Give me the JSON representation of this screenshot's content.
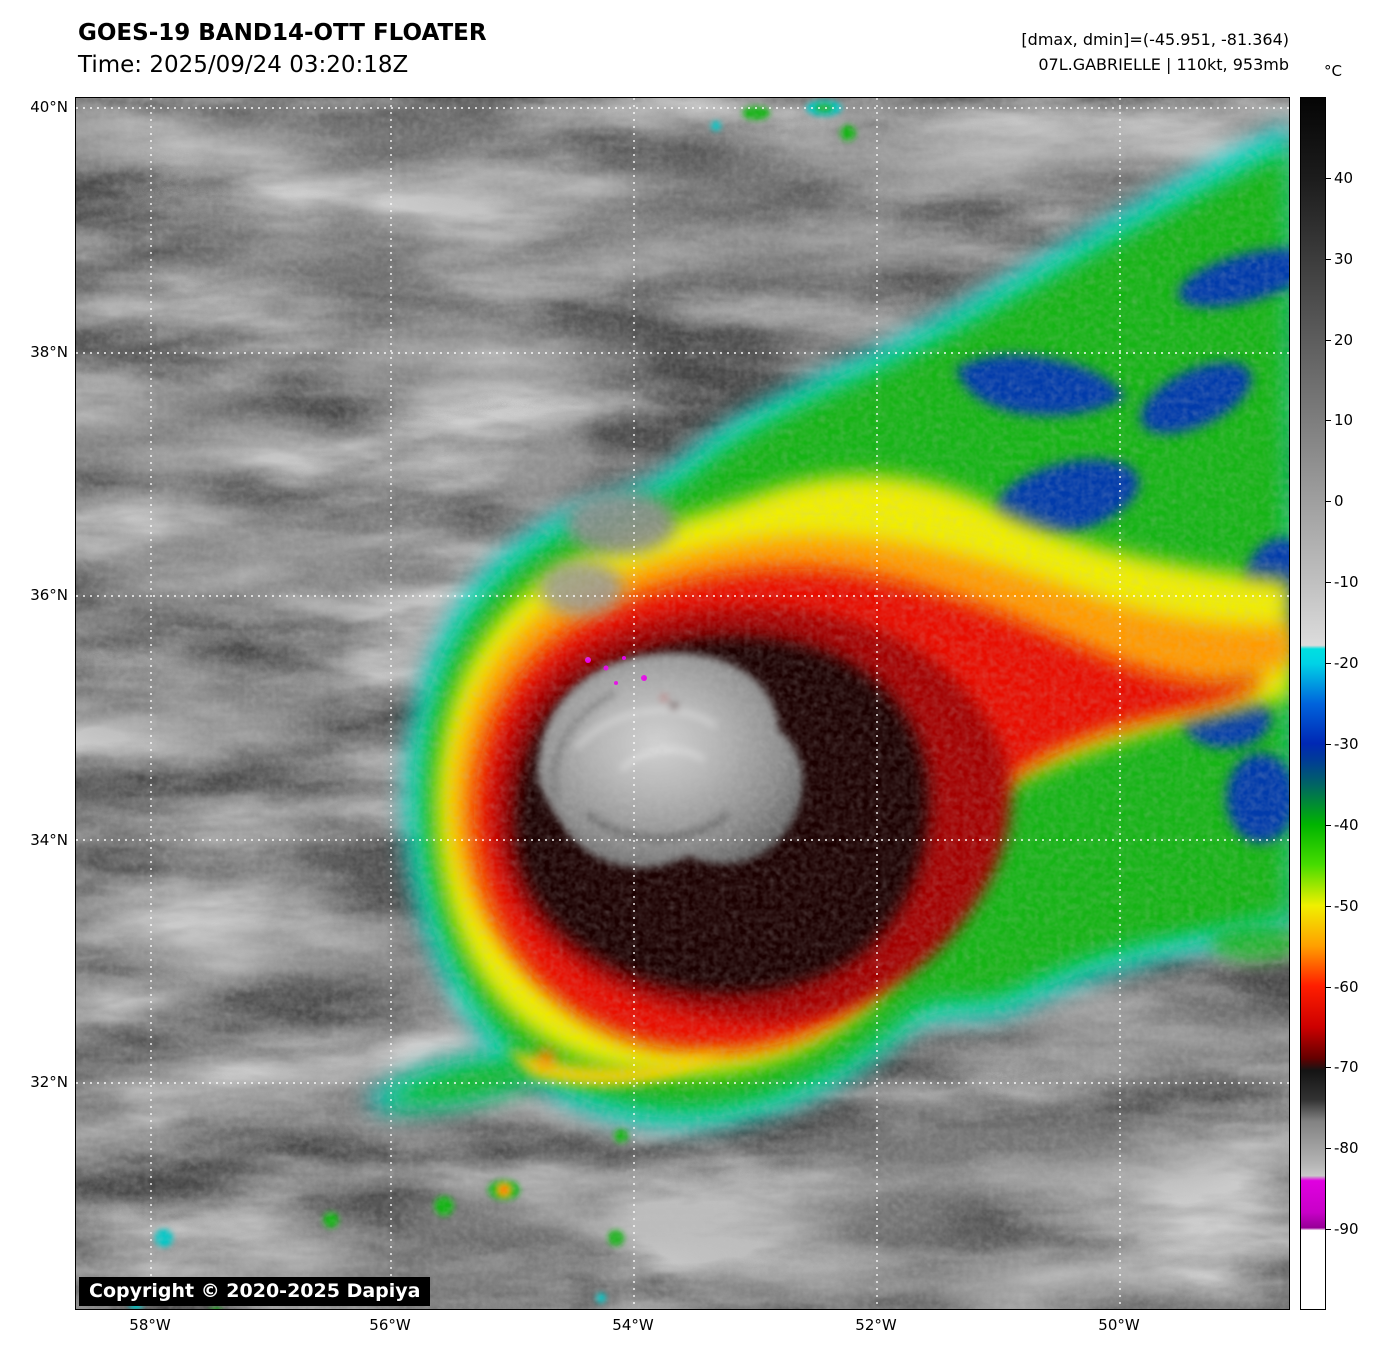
{
  "header": {
    "title": "GOES-19 BAND14-OTT FLOATER",
    "time": "Time: 2025/09/24 03:20:18Z",
    "dmax_dmin": "[dmax, dmin]=(-45.951, -81.364)",
    "storm_info": "07L.GABRIELLE | 110kt, 953mb"
  },
  "colorbar": {
    "unit": "°C",
    "ticks": [
      "40",
      "30",
      "20",
      "10",
      "0",
      "-10",
      "-20",
      "-30",
      "-40",
      "-50",
      "-60",
      "-70",
      "-80",
      "-90"
    ],
    "scale_colors": [
      "#050505",
      "#9f9f9f",
      "#dcdcdc",
      "#00d2e6",
      "#0064dc",
      "#0028b4",
      "#006464",
      "#00b400",
      "#46dc00",
      "#f0f000",
      "#ffa000",
      "#ff1e00",
      "#cd0000",
      "#640000",
      "#141414",
      "#828282",
      "#b4b4b4",
      "#e000e0",
      "#960096",
      "#ffffff"
    ]
  },
  "map": {
    "lat_labels": [
      "40°N",
      "38°N",
      "36°N",
      "34°N",
      "32°N"
    ],
    "lon_labels": [
      "58°W",
      "56°W",
      "54°W",
      "52°W",
      "50°W"
    ],
    "copyright": "Copyright © 2020-2025 Dapiya"
  }
}
